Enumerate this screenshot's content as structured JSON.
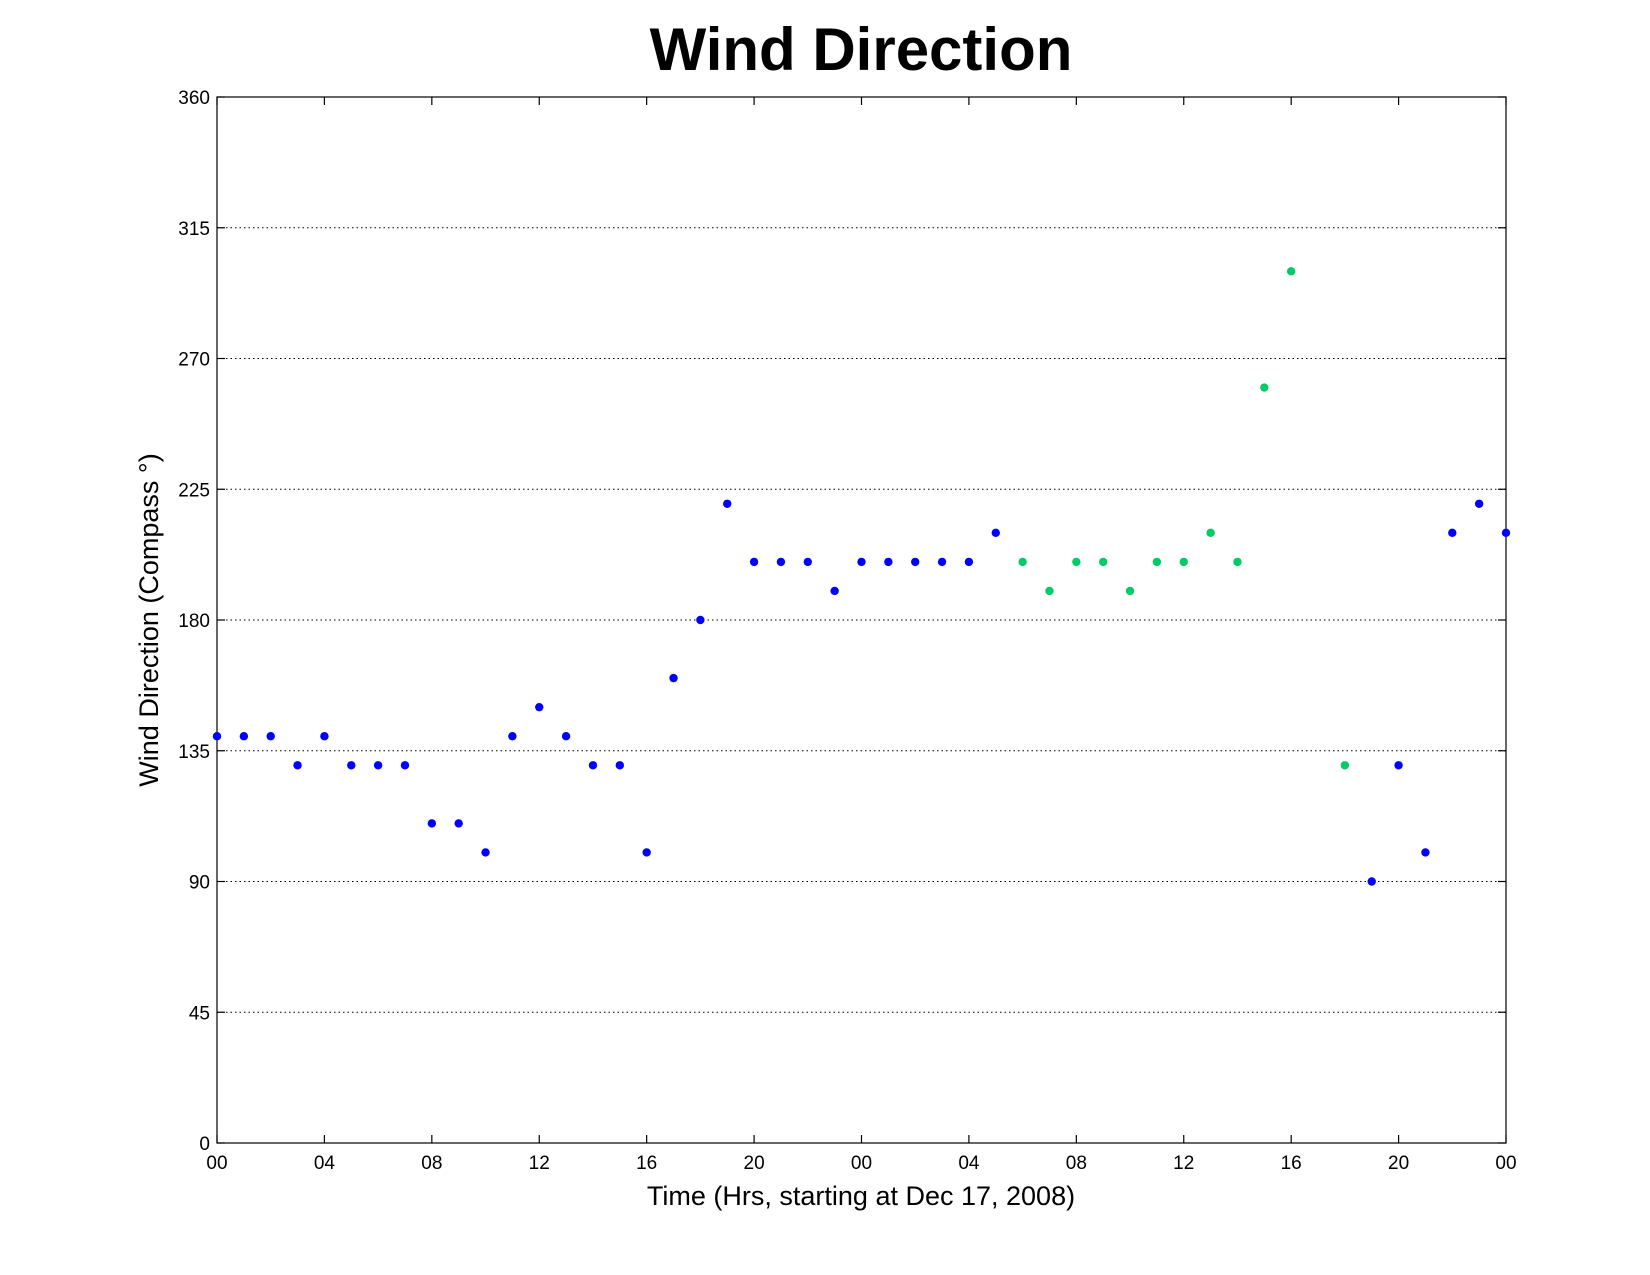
{
  "chart_data": {
    "type": "scatter",
    "title": "Wind Direction",
    "xlabel": "Time (Hrs, starting at Dec 17, 2008)",
    "ylabel": "Wind Direction (Compass  °)",
    "ylim": [
      0,
      360
    ],
    "yticks": [
      0,
      45,
      90,
      135,
      180,
      225,
      270,
      315,
      360
    ],
    "xlim_hours": [
      0,
      48
    ],
    "xticks": [
      {
        "hour": 0,
        "label": "00"
      },
      {
        "hour": 4,
        "label": "04"
      },
      {
        "hour": 8,
        "label": "08"
      },
      {
        "hour": 12,
        "label": "12"
      },
      {
        "hour": 16,
        "label": "16"
      },
      {
        "hour": 20,
        "label": "20"
      },
      {
        "hour": 24,
        "label": "00"
      },
      {
        "hour": 28,
        "label": "04"
      },
      {
        "hour": 32,
        "label": "08"
      },
      {
        "hour": 36,
        "label": "12"
      },
      {
        "hour": 40,
        "label": "16"
      },
      {
        "hour": 44,
        "label": "20"
      },
      {
        "hour": 48,
        "label": "00"
      }
    ],
    "grid": "horizontal dotted",
    "colors": {
      "blue": "#0000ff",
      "green": "#00cc66"
    },
    "points": [
      {
        "hour": 0,
        "value": 140,
        "color": "blue"
      },
      {
        "hour": 1,
        "value": 140,
        "color": "blue"
      },
      {
        "hour": 2,
        "value": 140,
        "color": "blue"
      },
      {
        "hour": 3,
        "value": 130,
        "color": "blue"
      },
      {
        "hour": 4,
        "value": 140,
        "color": "blue"
      },
      {
        "hour": 5,
        "value": 130,
        "color": "blue"
      },
      {
        "hour": 6,
        "value": 130,
        "color": "blue"
      },
      {
        "hour": 7,
        "value": 130,
        "color": "blue"
      },
      {
        "hour": 8,
        "value": 110,
        "color": "blue"
      },
      {
        "hour": 9,
        "value": 110,
        "color": "blue"
      },
      {
        "hour": 10,
        "value": 100,
        "color": "blue"
      },
      {
        "hour": 11,
        "value": 140,
        "color": "blue"
      },
      {
        "hour": 12,
        "value": 150,
        "color": "blue"
      },
      {
        "hour": 13,
        "value": 140,
        "color": "blue"
      },
      {
        "hour": 14,
        "value": 130,
        "color": "blue"
      },
      {
        "hour": 15,
        "value": 130,
        "color": "blue"
      },
      {
        "hour": 16,
        "value": 100,
        "color": "blue"
      },
      {
        "hour": 17,
        "value": 160,
        "color": "blue"
      },
      {
        "hour": 18,
        "value": 180,
        "color": "blue"
      },
      {
        "hour": 19,
        "value": 220,
        "color": "blue"
      },
      {
        "hour": 20,
        "value": 200,
        "color": "blue"
      },
      {
        "hour": 21,
        "value": 200,
        "color": "blue"
      },
      {
        "hour": 22,
        "value": 200,
        "color": "blue"
      },
      {
        "hour": 23,
        "value": 190,
        "color": "blue"
      },
      {
        "hour": 24,
        "value": 200,
        "color": "blue"
      },
      {
        "hour": 25,
        "value": 200,
        "color": "blue"
      },
      {
        "hour": 26,
        "value": 200,
        "color": "blue"
      },
      {
        "hour": 27,
        "value": 200,
        "color": "blue"
      },
      {
        "hour": 28,
        "value": 200,
        "color": "blue"
      },
      {
        "hour": 29,
        "value": 210,
        "color": "blue"
      },
      {
        "hour": 30,
        "value": 200,
        "color": "green"
      },
      {
        "hour": 31,
        "value": 190,
        "color": "green"
      },
      {
        "hour": 32,
        "value": 200,
        "color": "green"
      },
      {
        "hour": 33,
        "value": 200,
        "color": "green"
      },
      {
        "hour": 34,
        "value": 190,
        "color": "green"
      },
      {
        "hour": 35,
        "value": 200,
        "color": "green"
      },
      {
        "hour": 36,
        "value": 200,
        "color": "green"
      },
      {
        "hour": 37,
        "value": 210,
        "color": "green"
      },
      {
        "hour": 38,
        "value": 200,
        "color": "green"
      },
      {
        "hour": 39,
        "value": 260,
        "color": "green"
      },
      {
        "hour": 40,
        "value": 300,
        "color": "green"
      },
      {
        "hour": 42,
        "value": 130,
        "color": "green"
      },
      {
        "hour": 43,
        "value": 90,
        "color": "blue"
      },
      {
        "hour": 44,
        "value": 130,
        "color": "blue"
      },
      {
        "hour": 45,
        "value": 100,
        "color": "blue"
      },
      {
        "hour": 46,
        "value": 210,
        "color": "blue"
      },
      {
        "hour": 47,
        "value": 220,
        "color": "blue"
      },
      {
        "hour": 48,
        "value": 210,
        "color": "blue"
      }
    ]
  }
}
